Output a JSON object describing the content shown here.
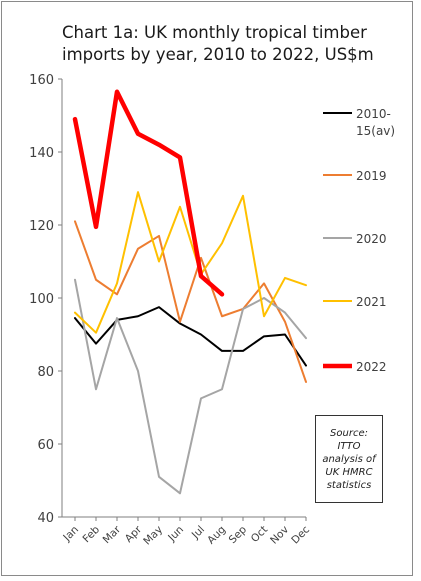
{
  "chart_data": {
    "type": "line",
    "title": "Chart 1a: UK monthly tropical timber imports by year, 2010 to 2022, US$m",
    "categories": [
      "Jan",
      "Feb",
      "Mar",
      "Apr",
      "May",
      "Jun",
      "Jul",
      "Aug",
      "Sep",
      "Oct",
      "Nov",
      "Dec"
    ],
    "ylim": [
      40,
      160
    ],
    "yticks": [
      40,
      60,
      80,
      100,
      120,
      140,
      160
    ],
    "grid": false,
    "legend_placement": "right",
    "series": [
      {
        "name": "2010-15(av)",
        "color": "#000000",
        "width": 2,
        "values": [
          94.5,
          87.5,
          94,
          95,
          97.5,
          93,
          90,
          85.5,
          85.5,
          89.5,
          90,
          81.5
        ]
      },
      {
        "name": "2019",
        "color": "#ED7D31",
        "width": 2,
        "values": [
          121,
          105,
          101,
          113.5,
          117,
          93.5,
          111,
          95,
          97,
          104,
          93.5,
          77
        ]
      },
      {
        "name": "2020",
        "color": "#A5A5A5",
        "width": 2,
        "values": [
          105,
          75,
          94.5,
          80,
          51,
          46.5,
          72.5,
          75,
          97,
          100,
          96,
          89
        ]
      },
      {
        "name": "2021",
        "color": "#FFC000",
        "width": 2,
        "values": [
          96,
          90.5,
          104,
          129,
          110,
          125,
          106.5,
          115,
          128,
          95,
          105.5,
          103.5
        ]
      },
      {
        "name": "2022",
        "color": "#FF0000",
        "width": 4.5,
        "values": [
          149,
          119.5,
          156.5,
          145,
          142,
          138.5,
          106,
          101,
          null,
          null,
          null,
          null
        ]
      }
    ],
    "annotation": "Source:\nITTO\nanalysis of\nUK HMRC\nstatistics"
  }
}
